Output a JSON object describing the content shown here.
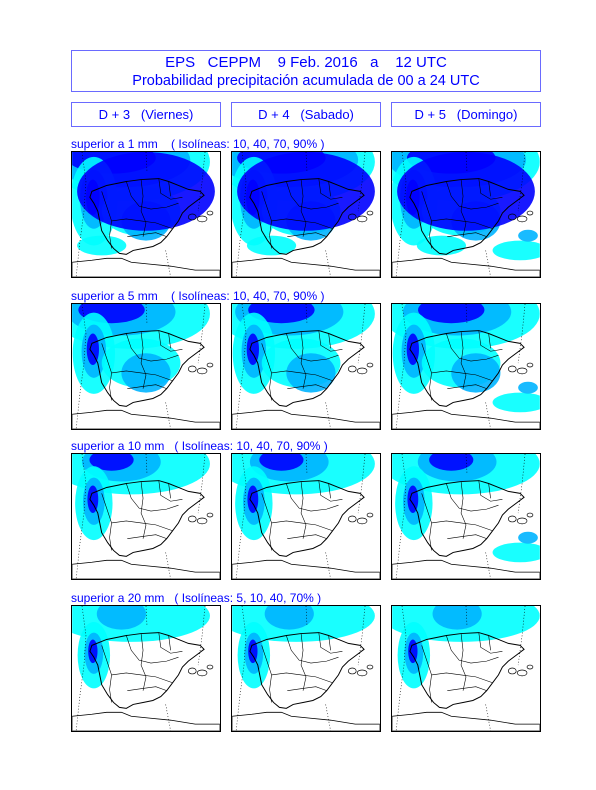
{
  "header": {
    "title_line1": "EPS   CEPPM    9 Feb. 2016   a    12 UTC",
    "title_line2": "Probabilidad precipitación acumulada de 00 a 24 UTC"
  },
  "columns": [
    {
      "label": "D + 3   (Viernes)"
    },
    {
      "label": "D + 4   (Sabado)"
    },
    {
      "label": "D + 5   (Domingo)"
    }
  ],
  "rows": [
    {
      "label": "superior a 1 mm    ( Isolíneas: 10, 40, 70, 90% )",
      "level": 4
    },
    {
      "label": "superior a 5 mm    ( Isolíneas: 10, 40, 70, 90% )",
      "level": 3
    },
    {
      "label": "superior a 10 mm   ( Isolíneas: 10, 40, 70, 90% )",
      "level": 2
    },
    {
      "label": "superior a 20 mm   ( Isolíneas: 5, 10, 40, 70% )",
      "level": 1
    }
  ],
  "colors": {
    "text": "#0000ff",
    "frame": "#6a6aff",
    "prob_low": "#00ffff",
    "prob_mid": "#00b4ff",
    "prob_high": "#0000ff",
    "land": "#ffffff",
    "border": "#000000"
  }
}
